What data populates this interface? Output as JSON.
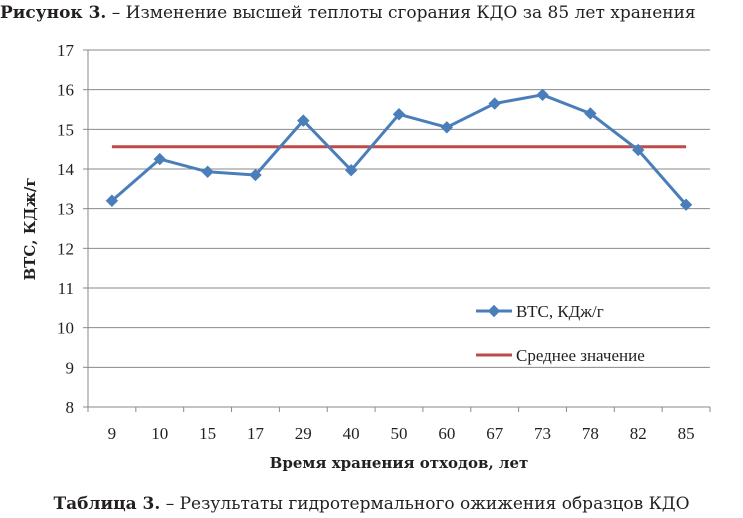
{
  "caption_top": {
    "lead": "Рисунок 3.",
    "rest": " – Изменение высшей теплоты сгорания КДО за 85 лет хранения"
  },
  "caption_bottom": {
    "lead": "Таблица 3.",
    "rest": " – Результаты гидротермального ожижения образцов КДО"
  },
  "chart_data": {
    "type": "line",
    "categories": [
      "9",
      "10",
      "15",
      "17",
      "29",
      "40",
      "50",
      "60",
      "67",
      "73",
      "78",
      "82",
      "85"
    ],
    "series": [
      {
        "name": "ВТС, КДж/г",
        "color": "#4a7ebb",
        "marker": "diamond",
        "values": [
          13.2,
          14.25,
          13.93,
          13.85,
          15.22,
          13.97,
          15.38,
          15.05,
          15.65,
          15.87,
          15.4,
          14.48,
          13.1
        ]
      },
      {
        "name": "Среднее значение",
        "color": "#be4b48",
        "marker": "none",
        "values": [
          14.56,
          14.56,
          14.56,
          14.56,
          14.56,
          14.56,
          14.56,
          14.56,
          14.56,
          14.56,
          14.56,
          14.56,
          14.56
        ]
      }
    ],
    "xlabel": "Время хранения отходов, лет",
    "ylabel": "ВТС, КДж/г",
    "ylim": [
      8,
      17
    ],
    "yticks": [
      8,
      9,
      10,
      11,
      12,
      13,
      14,
      15,
      16,
      17
    ],
    "grid": true,
    "legend": "right"
  }
}
